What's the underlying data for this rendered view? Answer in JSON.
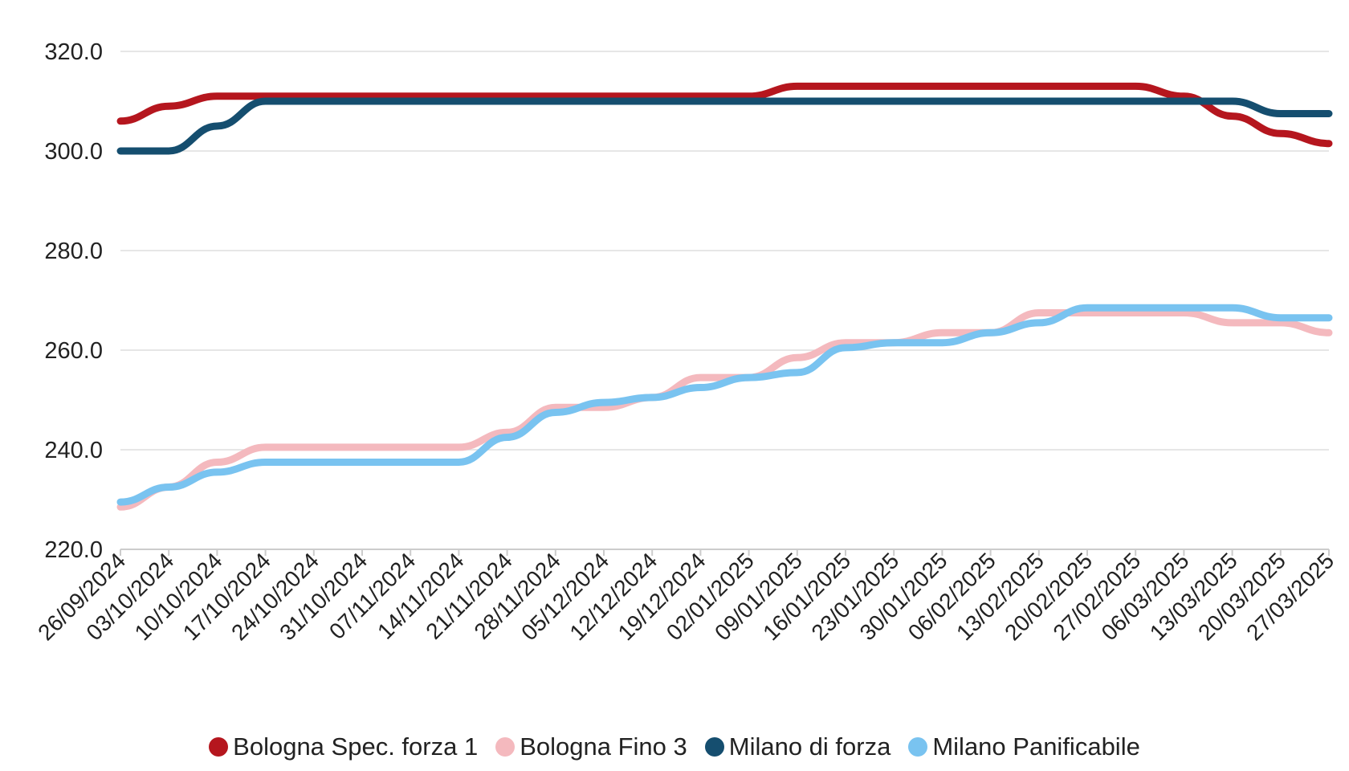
{
  "chart_data": {
    "type": "line",
    "title": "",
    "xlabel": "",
    "ylabel": "",
    "ylim": [
      220,
      320
    ],
    "y_ticks": [
      "220.0",
      "240.0",
      "260.0",
      "280.0",
      "300.0",
      "320.0"
    ],
    "grid": "horizontal",
    "legend_position": "bottom",
    "categories": [
      "26/09/2024",
      "03/10/2024",
      "10/10/2024",
      "17/10/2024",
      "24/10/2024",
      "31/10/2024",
      "07/11/2024",
      "14/11/2024",
      "21/11/2024",
      "28/11/2024",
      "05/12/2024",
      "12/12/2024",
      "19/12/2024",
      "02/01/2025",
      "09/01/2025",
      "16/01/2025",
      "23/01/2025",
      "30/01/2025",
      "06/02/2025",
      "13/02/2025",
      "20/02/2025",
      "27/02/2025",
      "06/03/2025",
      "13/03/2025",
      "20/03/2025",
      "27/03/2025"
    ],
    "series": [
      {
        "name": "Bologna Spec. forza 1",
        "color": "#b5161e",
        "values": [
          306,
          309,
          311,
          311,
          311,
          311,
          311,
          311,
          311,
          311,
          311,
          311,
          311,
          311,
          313,
          313,
          313,
          313,
          313,
          313,
          313,
          313,
          311,
          307,
          303.5,
          301.5
        ]
      },
      {
        "name": "Bologna Fino 3",
        "color": "#f4b9be",
        "values": [
          228.5,
          232.5,
          237.5,
          240.5,
          240.5,
          240.5,
          240.5,
          240.5,
          243.5,
          248.5,
          248.5,
          250.5,
          254.5,
          254.5,
          258.5,
          261.5,
          261.5,
          263.5,
          263.5,
          267.5,
          267.5,
          267.5,
          267.5,
          265.5,
          265.5,
          263.5
        ]
      },
      {
        "name": "Milano di forza",
        "color": "#154e6f",
        "values": [
          300,
          300,
          305,
          310,
          310,
          310,
          310,
          310,
          310,
          310,
          310,
          310,
          310,
          310,
          310,
          310,
          310,
          310,
          310,
          310,
          310,
          310,
          310,
          310,
          307.5,
          307.5
        ]
      },
      {
        "name": "Milano Panificabile",
        "color": "#79c3f0",
        "values": [
          229.5,
          232.5,
          235.5,
          237.5,
          237.5,
          237.5,
          237.5,
          237.5,
          242.5,
          247.5,
          249.5,
          250.5,
          252.5,
          254.5,
          255.5,
          260.5,
          261.5,
          261.5,
          263.5,
          265.5,
          268.5,
          268.5,
          268.5,
          268.5,
          266.5,
          266.5
        ]
      }
    ]
  }
}
